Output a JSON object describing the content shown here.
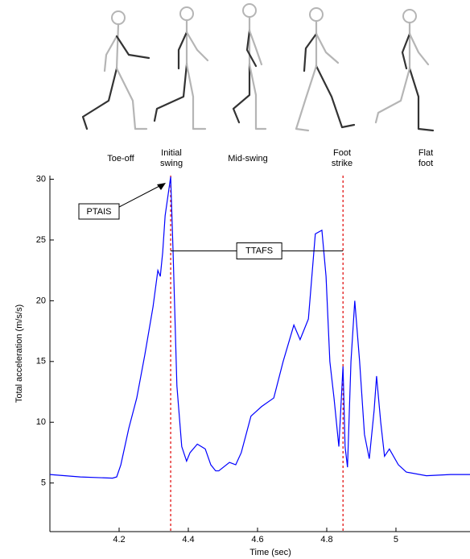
{
  "chart_data": {
    "type": "line",
    "xlabel": "Time (sec)",
    "ylabel": "Total acceleration (m/s/s)",
    "xlim": [
      4.0,
      5.214
    ],
    "ylim": [
      1,
      30.3
    ],
    "xticks": [
      4.2,
      4.4,
      4.6,
      4.8,
      5.0
    ],
    "yticks": [
      5,
      10,
      15,
      20,
      25,
      30
    ],
    "x": [
      4.0,
      4.088,
      4.181,
      4.193,
      4.205,
      4.228,
      4.251,
      4.274,
      4.298,
      4.312,
      4.319,
      4.326,
      4.333,
      4.349,
      4.356,
      4.367,
      4.381,
      4.395,
      4.405,
      4.426,
      4.449,
      4.465,
      4.479,
      4.488,
      4.519,
      4.537,
      4.553,
      4.581,
      4.612,
      4.647,
      4.674,
      4.705,
      4.723,
      4.747,
      4.767,
      4.786,
      4.798,
      4.809,
      4.821,
      4.835,
      4.847,
      4.853,
      4.86,
      4.87,
      4.881,
      4.895,
      4.909,
      4.923,
      4.937,
      4.944,
      4.956,
      4.967,
      4.981,
      5.007,
      5.03,
      5.088,
      5.158,
      5.214
    ],
    "series": [
      {
        "color": "#0000ff",
        "values": [
          5.7,
          5.5,
          5.4,
          5.5,
          6.5,
          9.5,
          12,
          15.5,
          19.5,
          22.5,
          22,
          24,
          27,
          30.2,
          24,
          13,
          8,
          6.8,
          7.5,
          8.2,
          7.8,
          6.5,
          6.0,
          6.0,
          6.7,
          6.5,
          7.5,
          10.5,
          11.3,
          12,
          15,
          18,
          16.8,
          18.5,
          25.5,
          25.8,
          22,
          15,
          12,
          8,
          14.6,
          8,
          6.3,
          15,
          20,
          15,
          9,
          7,
          11,
          13.8,
          10,
          7.2,
          7.8,
          6.5,
          5.9,
          5.6,
          5.7,
          5.7
        ]
      }
    ],
    "event_lines": {
      "color": "#e00000",
      "x": [
        4.349,
        4.847
      ]
    },
    "annotations": [
      {
        "text": "PTAIS"
      },
      {
        "text": "TTAFS",
        "y": 24.1
      }
    ],
    "phases": [
      [
        "Toe-off"
      ],
      [
        "Initial",
        "swing"
      ],
      [
        "Mid-swing"
      ],
      [
        "Foot",
        "strike"
      ],
      [
        "Flat",
        "foot"
      ]
    ]
  }
}
